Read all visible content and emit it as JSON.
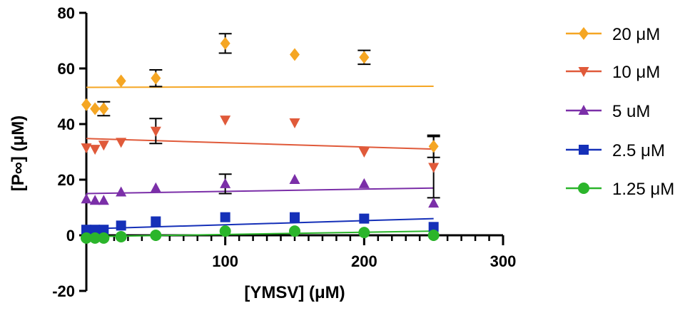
{
  "chart_data": {
    "type": "scatter",
    "title": "",
    "xlabel": "[YMSV] (μM)",
    "ylabel": "[P∞] (μM)",
    "xlim": [
      0,
      300
    ],
    "ylim": [
      -20,
      80
    ],
    "x_ticks": [
      100,
      200,
      300
    ],
    "x_tick_labels": [
      "100",
      "200",
      "300"
    ],
    "y_ticks": [
      -20,
      0,
      20,
      40,
      60,
      80
    ],
    "y_tick_labels": [
      "-20",
      "0",
      "20",
      "40",
      "60",
      "80"
    ],
    "x_minor_step": 10,
    "grid": false,
    "legend_position": "right",
    "series": [
      {
        "name": "20 μM",
        "color": "#F5A623",
        "marker": "diamond",
        "points": [
          {
            "x": 0,
            "y": 47
          },
          {
            "x": 6.25,
            "y": 45.5
          },
          {
            "x": 12.5,
            "y": 45.5,
            "err": 2.5
          },
          {
            "x": 25,
            "y": 55.5
          },
          {
            "x": 50,
            "y": 56.5,
            "err": 3
          },
          {
            "x": 100,
            "y": 69,
            "err": 3.5
          },
          {
            "x": 150,
            "y": 65
          },
          {
            "x": 200,
            "y": 64,
            "err": 2.5
          },
          {
            "x": 250,
            "y": 32,
            "err": 4
          }
        ],
        "fit": {
          "x": [
            0,
            250
          ],
          "y": [
            53.2,
            53.6
          ]
        }
      },
      {
        "name": "10 μM",
        "color": "#E05A3A",
        "marker": "triangle-down",
        "points": [
          {
            "x": 0,
            "y": 31.5
          },
          {
            "x": 6.25,
            "y": 31
          },
          {
            "x": 12.5,
            "y": 32.5
          },
          {
            "x": 25,
            "y": 33.5
          },
          {
            "x": 50,
            "y": 37.5,
            "err": 4.5
          },
          {
            "x": 100,
            "y": 41.5
          },
          {
            "x": 150,
            "y": 40.5
          },
          {
            "x": 200,
            "y": 30
          },
          {
            "x": 250,
            "y": 24.5,
            "err": 11
          }
        ],
        "fit": {
          "x": [
            0,
            250
          ],
          "y": [
            34.8,
            31.0
          ]
        }
      },
      {
        "name": "5 uM",
        "color": "#7B2FA8",
        "marker": "triangle-up",
        "points": [
          {
            "x": 0,
            "y": 13
          },
          {
            "x": 6.25,
            "y": 12.5
          },
          {
            "x": 12.5,
            "y": 12.5
          },
          {
            "x": 25,
            "y": 15.5
          },
          {
            "x": 50,
            "y": 17
          },
          {
            "x": 100,
            "y": 18.5,
            "err": 3.5
          },
          {
            "x": 150,
            "y": 20
          },
          {
            "x": 200,
            "y": 18.5
          },
          {
            "x": 250,
            "y": 11.5
          }
        ],
        "fit": {
          "x": [
            0,
            250
          ],
          "y": [
            15.0,
            17.0
          ]
        }
      },
      {
        "name": "2.5 μM",
        "color": "#1530B8",
        "marker": "square",
        "points": [
          {
            "x": 0,
            "y": 2
          },
          {
            "x": 6.25,
            "y": 2
          },
          {
            "x": 12.5,
            "y": 2
          },
          {
            "x": 25,
            "y": 3.5
          },
          {
            "x": 50,
            "y": 5
          },
          {
            "x": 100,
            "y": 6.5
          },
          {
            "x": 150,
            "y": 6.5
          },
          {
            "x": 200,
            "y": 6
          },
          {
            "x": 250,
            "y": 3
          }
        ],
        "fit": {
          "x": [
            0,
            250
          ],
          "y": [
            2.3,
            6.0
          ]
        }
      },
      {
        "name": "1.25 μM",
        "color": "#2BB52B",
        "marker": "circle",
        "points": [
          {
            "x": 0,
            "y": -1
          },
          {
            "x": 6.25,
            "y": -1
          },
          {
            "x": 12.5,
            "y": -1
          },
          {
            "x": 25,
            "y": -0.5
          },
          {
            "x": 50,
            "y": 0
          },
          {
            "x": 100,
            "y": 1.5
          },
          {
            "x": 150,
            "y": 1.5
          },
          {
            "x": 200,
            "y": 1
          },
          {
            "x": 250,
            "y": 0
          }
        ],
        "fit": {
          "x": [
            0,
            250
          ],
          "y": [
            -0.5,
            1.5
          ]
        }
      }
    ]
  }
}
